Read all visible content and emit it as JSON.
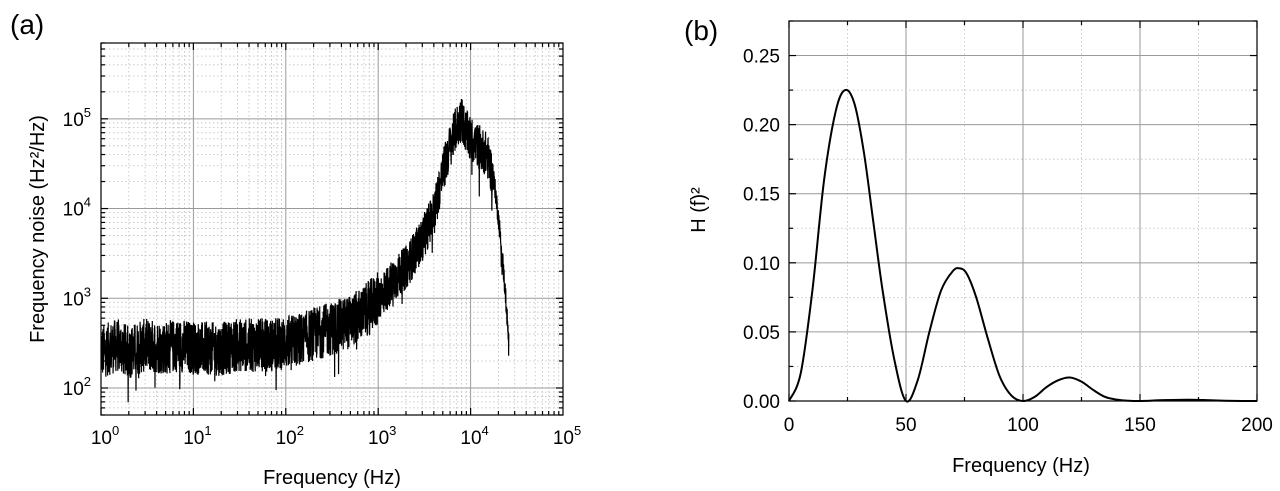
{
  "panels": {
    "a": {
      "label": "(a)"
    },
    "b": {
      "label": "(b)"
    }
  },
  "chart_data": [
    {
      "panel": "(a)",
      "type": "line",
      "x_scale": "log",
      "y_scale": "log",
      "xlabel": "Frequency (Hz)",
      "ylabel": "Frequency noise (Hz²/Hz)",
      "xlim": [
        1,
        100000
      ],
      "ylim": [
        50,
        700000
      ],
      "grid": true,
      "xticks": [
        {
          "base": "10",
          "exp": "0"
        },
        {
          "base": "10",
          "exp": "1"
        },
        {
          "base": "10",
          "exp": "2"
        },
        {
          "base": "10",
          "exp": "3"
        },
        {
          "base": "10",
          "exp": "4"
        },
        {
          "base": "10",
          "exp": "5"
        }
      ],
      "yticks": [
        {
          "base": "10",
          "exp": "2"
        },
        {
          "base": "10",
          "exp": "3"
        },
        {
          "base": "10",
          "exp": "4"
        },
        {
          "base": "10",
          "exp": "5"
        }
      ],
      "series": [
        {
          "color": "#000000",
          "x": [
            1,
            1.5,
            2,
            3,
            5,
            7,
            10,
            20,
            30,
            50,
            70,
            100,
            150,
            200,
            300,
            500,
            700,
            1000,
            1500,
            2000,
            3000,
            4000,
            5000,
            6000,
            7000,
            8000,
            9000,
            10000,
            12000,
            15000,
            18000,
            20000,
            22000,
            24000,
            26000
          ],
          "y": [
            250,
            300,
            250,
            300,
            280,
            300,
            280,
            270,
            300,
            300,
            300,
            320,
            350,
            400,
            450,
            550,
            700,
            1000,
            1600,
            2200,
            4500,
            9000,
            25000,
            50000,
            80000,
            100000,
            70000,
            60000,
            50000,
            40000,
            20000,
            8000,
            3000,
            1000,
            300
          ]
        }
      ]
    },
    {
      "panel": "(b)",
      "type": "line",
      "xlabel": "Frequency (Hz)",
      "ylabel": "H (f)²",
      "xlim": [
        0,
        200
      ],
      "ylim": [
        0,
        0.275
      ],
      "grid": true,
      "xticks": [
        "0",
        "50",
        "100",
        "150",
        "200"
      ],
      "yticks": [
        "0.00",
        "0.05",
        "0.10",
        "0.15",
        "0.20",
        "0.25"
      ],
      "series": [
        {
          "color": "#000000",
          "x": [
            0,
            5,
            10,
            15,
            20,
            24,
            28,
            32,
            36,
            40,
            45,
            50,
            55,
            60,
            65,
            70,
            73,
            76,
            80,
            85,
            90,
            95,
            100,
            105,
            110,
            115,
            120,
            125,
            130,
            135,
            140,
            145,
            150,
            160,
            170,
            175,
            180,
            190,
            200
          ],
          "y": [
            0,
            0.02,
            0.08,
            0.16,
            0.21,
            0.225,
            0.215,
            0.18,
            0.13,
            0.08,
            0.03,
            0,
            0.015,
            0.05,
            0.08,
            0.094,
            0.096,
            0.092,
            0.075,
            0.045,
            0.018,
            0.004,
            0,
            0.003,
            0.01,
            0.015,
            0.017,
            0.014,
            0.008,
            0.003,
            0.001,
            0.0002,
            0,
            0.0006,
            0.0009,
            0.0008,
            0.0005,
            0.0001,
            0
          ]
        }
      ]
    }
  ]
}
